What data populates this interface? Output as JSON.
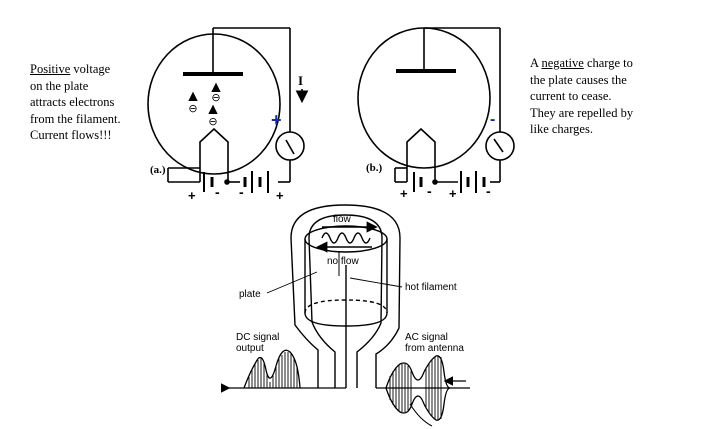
{
  "left_note": {
    "emphasis": "Positive",
    "rest_line1": " voltage",
    "line2": "on the plate",
    "line3": "attracts electrons",
    "line4": "from the filament.",
    "line5": "Current flows!!!"
  },
  "right_note": {
    "prefix": "A ",
    "emphasis": "negative",
    "rest_line1": " charge to",
    "line2": "the plate causes the",
    "line3": "current to cease.",
    "line4": "They are repelled by",
    "line5": "like charges."
  },
  "circuit_a": {
    "label": "(a.)",
    "current_label": "I",
    "meter_polarity": "+",
    "electron_sign": "⊖",
    "battery_signs": [
      "+",
      "-",
      "-",
      "+"
    ]
  },
  "circuit_b": {
    "label": "(b.)",
    "meter_polarity": "-",
    "battery_signs": [
      "+",
      "-",
      "+",
      "-"
    ]
  },
  "tube": {
    "flow_label": "flow",
    "noflow_label": "no flow",
    "plate_label": "plate",
    "filament_label": "hot filament",
    "dc_label_line1": "DC signal",
    "dc_label_line2": "output",
    "ac_label_line1": "AC signal",
    "ac_label_line2": "from antenna"
  },
  "colors": {
    "ink": "#000000",
    "positive_accent": "#1a2aa0",
    "negative_accent": "#1a2aa0"
  }
}
